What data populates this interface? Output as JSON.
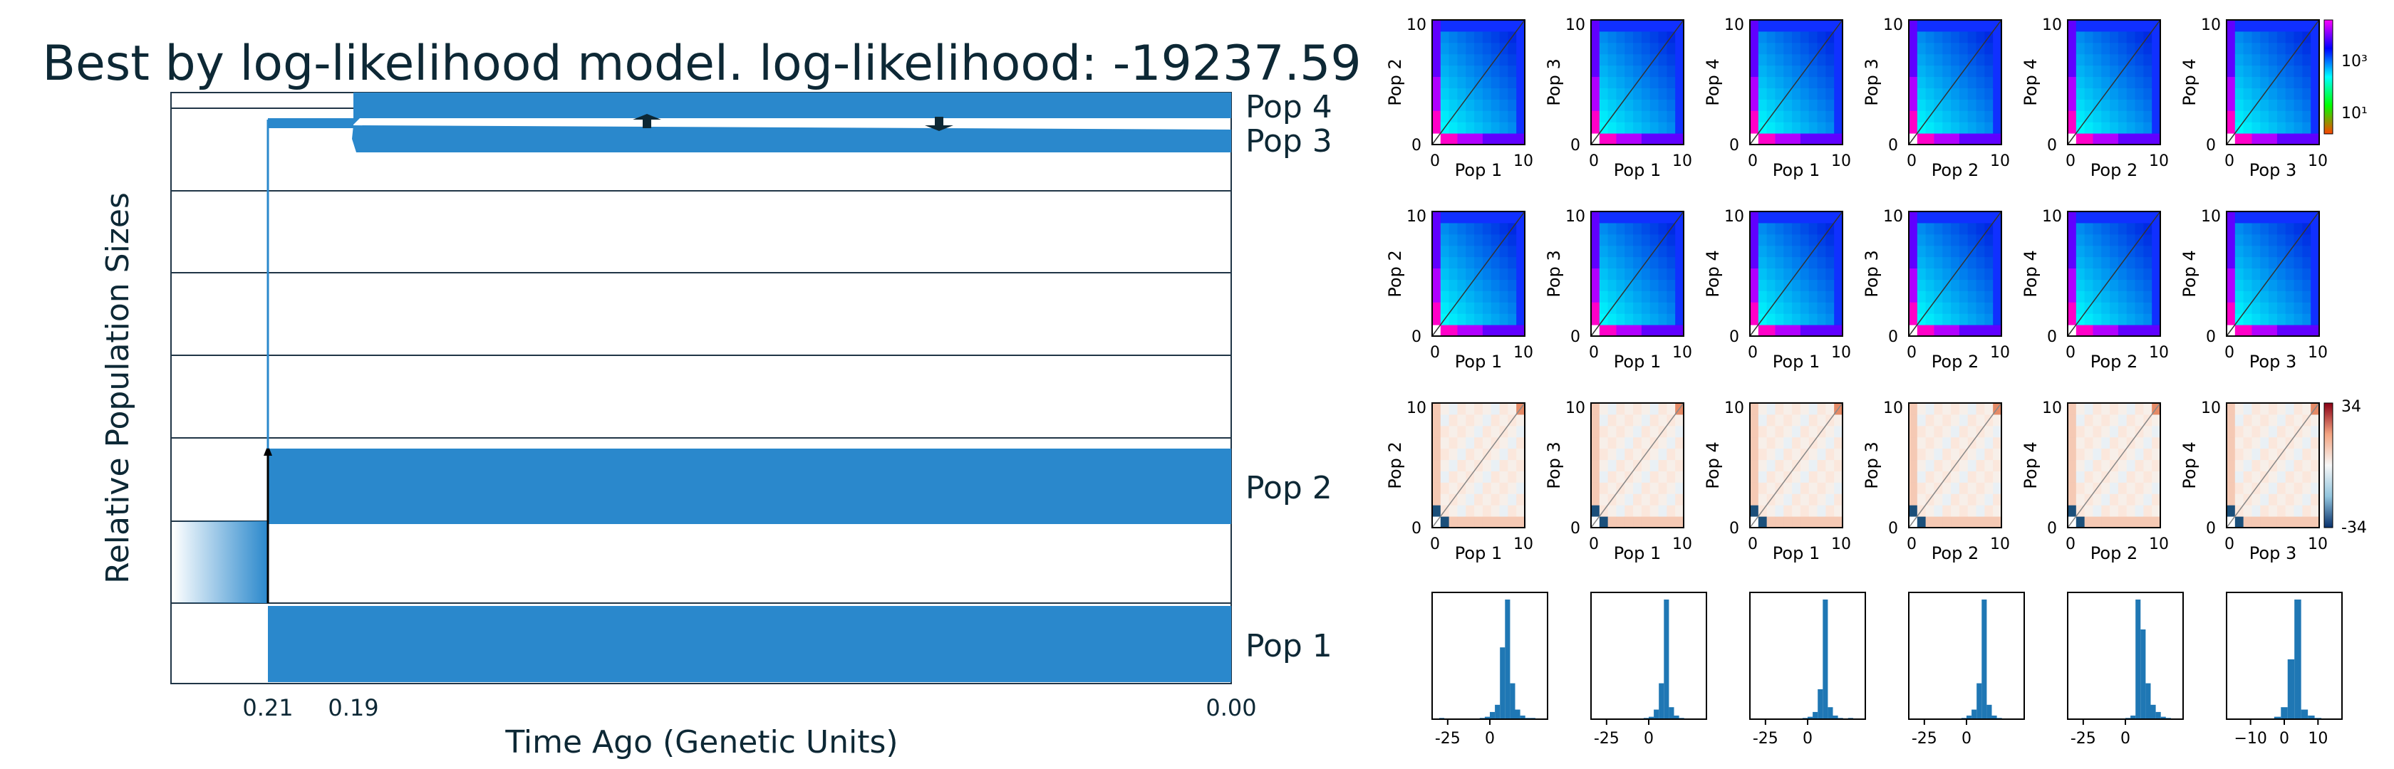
{
  "chart_data": [
    {
      "type": "area",
      "title": "Best by log-likelihood model. log-likelihood: -19237.59",
      "xlabel": "Time Ago (Genetic Units)",
      "ylabel": "Relative Population Sizes",
      "x_ticks": [
        "0.21",
        "0.19",
        "0.00"
      ],
      "populations": [
        "Pop 4",
        "Pop 3",
        "Pop 2",
        "Pop 1"
      ],
      "split_times": [
        0.21,
        0.19
      ],
      "migration_arrows": 2,
      "color": "#2a88cc"
    },
    {
      "type": "heatmap",
      "rows": [
        {
          "row": 1,
          "description_kind": "observed",
          "colorbar_ticks": [
            "10³",
            "10¹"
          ],
          "panels": [
            {
              "xlabel": "Pop 1",
              "ylabel": "Pop 2",
              "xticks": [
                "0",
                "10"
              ],
              "yticks": [
                "0",
                "10"
              ]
            },
            {
              "xlabel": "Pop 1",
              "ylabel": "Pop 3",
              "xticks": [
                "0",
                "10"
              ],
              "yticks": [
                "0",
                "10"
              ]
            },
            {
              "xlabel": "Pop 1",
              "ylabel": "Pop 4",
              "xticks": [
                "0",
                "10"
              ],
              "yticks": [
                "0",
                "10"
              ]
            },
            {
              "xlabel": "Pop 2",
              "ylabel": "Pop 3",
              "xticks": [
                "0",
                "10"
              ],
              "yticks": [
                "0",
                "10"
              ]
            },
            {
              "xlabel": "Pop 2",
              "ylabel": "Pop 4",
              "xticks": [
                "0",
                "10"
              ],
              "yticks": [
                "0",
                "10"
              ]
            },
            {
              "xlabel": "Pop 3",
              "ylabel": "Pop 4",
              "xticks": [
                "0",
                "10"
              ],
              "yticks": [
                "0",
                "10"
              ]
            }
          ]
        },
        {
          "row": 2,
          "description_kind": "model",
          "colorbar_ticks": [],
          "panels": [
            {
              "xlabel": "Pop 1",
              "ylabel": "Pop 2",
              "xticks": [
                "0",
                "10"
              ],
              "yticks": [
                "0",
                "10"
              ]
            },
            {
              "xlabel": "Pop 1",
              "ylabel": "Pop 3",
              "xticks": [
                "0",
                "10"
              ],
              "yticks": [
                "0",
                "10"
              ]
            },
            {
              "xlabel": "Pop 1",
              "ylabel": "Pop 4",
              "xticks": [
                "0",
                "10"
              ],
              "yticks": [
                "0",
                "10"
              ]
            },
            {
              "xlabel": "Pop 2",
              "ylabel": "Pop 3",
              "xticks": [
                "0",
                "10"
              ],
              "yticks": [
                "0",
                "10"
              ]
            },
            {
              "xlabel": "Pop 2",
              "ylabel": "Pop 4",
              "xticks": [
                "0",
                "10"
              ],
              "yticks": [
                "0",
                "10"
              ]
            },
            {
              "xlabel": "Pop 3",
              "ylabel": "Pop 4",
              "xticks": [
                "0",
                "10"
              ],
              "yticks": [
                "0",
                "10"
              ]
            }
          ]
        },
        {
          "row": 3,
          "description_kind": "residuals",
          "colorbar_ticks": [
            "34",
            "-34"
          ],
          "panels": [
            {
              "xlabel": "Pop 1",
              "ylabel": "Pop 2",
              "xticks": [
                "0",
                "10"
              ],
              "yticks": [
                "0",
                "10"
              ]
            },
            {
              "xlabel": "Pop 1",
              "ylabel": "Pop 3",
              "xticks": [
                "0",
                "10"
              ],
              "yticks": [
                "0",
                "10"
              ]
            },
            {
              "xlabel": "Pop 1",
              "ylabel": "Pop 4",
              "xticks": [
                "0",
                "10"
              ],
              "yticks": [
                "0",
                "10"
              ]
            },
            {
              "xlabel": "Pop 2",
              "ylabel": "Pop 3",
              "xticks": [
                "0",
                "10"
              ],
              "yticks": [
                "0",
                "10"
              ]
            },
            {
              "xlabel": "Pop 2",
              "ylabel": "Pop 4",
              "xticks": [
                "0",
                "10"
              ],
              "yticks": [
                "0",
                "10"
              ]
            },
            {
              "xlabel": "Pop 3",
              "ylabel": "Pop 4",
              "xticks": [
                "0",
                "10"
              ],
              "yticks": [
                "0",
                "10"
              ]
            }
          ]
        }
      ]
    },
    {
      "type": "bar",
      "description_kind": "residual histograms",
      "color": "#1f77b4",
      "panels": [
        {
          "xticks": [
            "-25",
            "0"
          ],
          "bins": [
            -30,
            30
          ],
          "counts": [
            1,
            0,
            0,
            0,
            0,
            0,
            0,
            0,
            1,
            2,
            6,
            12,
            60,
            100,
            30,
            8,
            3,
            1,
            1,
            0
          ]
        },
        {
          "xticks": [
            "-25",
            "0"
          ],
          "bins": [
            -30,
            30
          ],
          "counts": [
            0,
            0,
            0,
            0,
            0,
            0,
            0,
            0,
            0,
            1,
            2,
            8,
            30,
            100,
            10,
            3,
            1,
            0,
            0,
            0
          ]
        },
        {
          "xticks": [
            "-25",
            "0"
          ],
          "bins": [
            -30,
            30
          ],
          "counts": [
            0,
            0,
            0,
            0,
            0,
            0,
            0,
            0,
            0,
            1,
            2,
            6,
            25,
            100,
            10,
            3,
            1,
            0,
            1,
            0
          ]
        },
        {
          "xticks": [
            "-25",
            "0"
          ],
          "bins": [
            -30,
            30
          ],
          "counts": [
            0,
            0,
            0,
            0,
            0,
            0,
            0,
            0,
            0,
            1,
            3,
            8,
            30,
            100,
            12,
            3,
            1,
            0,
            0,
            0
          ]
        },
        {
          "xticks": [
            "-25",
            "0"
          ],
          "bins": [
            -30,
            30
          ],
          "counts": [
            0,
            0,
            0,
            0,
            0,
            0,
            0,
            0,
            0,
            0,
            1,
            3,
            100,
            75,
            30,
            12,
            6,
            2,
            1,
            0
          ]
        },
        {
          "xticks": [
            "−10",
            "0",
            "10"
          ],
          "bins": [
            -15,
            15
          ],
          "counts": [
            0,
            0,
            0,
            0,
            0,
            0,
            2,
            10,
            50,
            100,
            8,
            3,
            1,
            0,
            0
          ]
        }
      ]
    }
  ]
}
